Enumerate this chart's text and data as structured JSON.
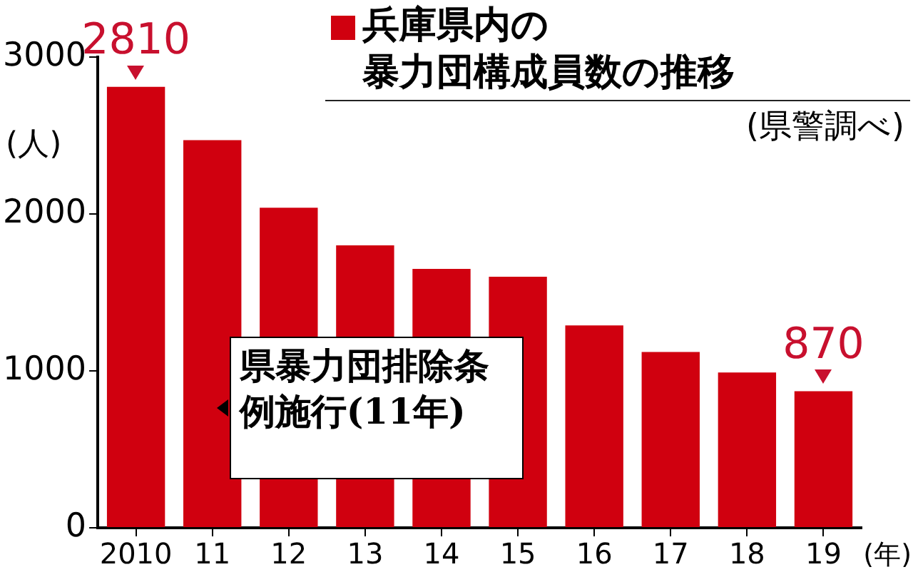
{
  "chart_data": {
    "type": "bar",
    "title": "兵庫県内の暴力団構成員数の推移",
    "subtitle": "(県警調べ)",
    "ylabel": "(人)",
    "xlabel": "(年)",
    "categories": [
      "2010",
      "11",
      "12",
      "13",
      "14",
      "15",
      "16",
      "17",
      "18",
      "19"
    ],
    "values": [
      2810,
      2470,
      2040,
      1800,
      1650,
      1600,
      1290,
      1120,
      990,
      870
    ],
    "value_labels": [
      "2810",
      null,
      null,
      null,
      null,
      null,
      null,
      null,
      null,
      "870"
    ],
    "color": "#d0000f",
    "ylim": [
      0,
      3000
    ],
    "yticks": [
      0,
      1000,
      2000,
      3000
    ],
    "grid": false,
    "legend": false,
    "annotations": [
      "県暴力団排除条例施行(11年)"
    ]
  }
}
